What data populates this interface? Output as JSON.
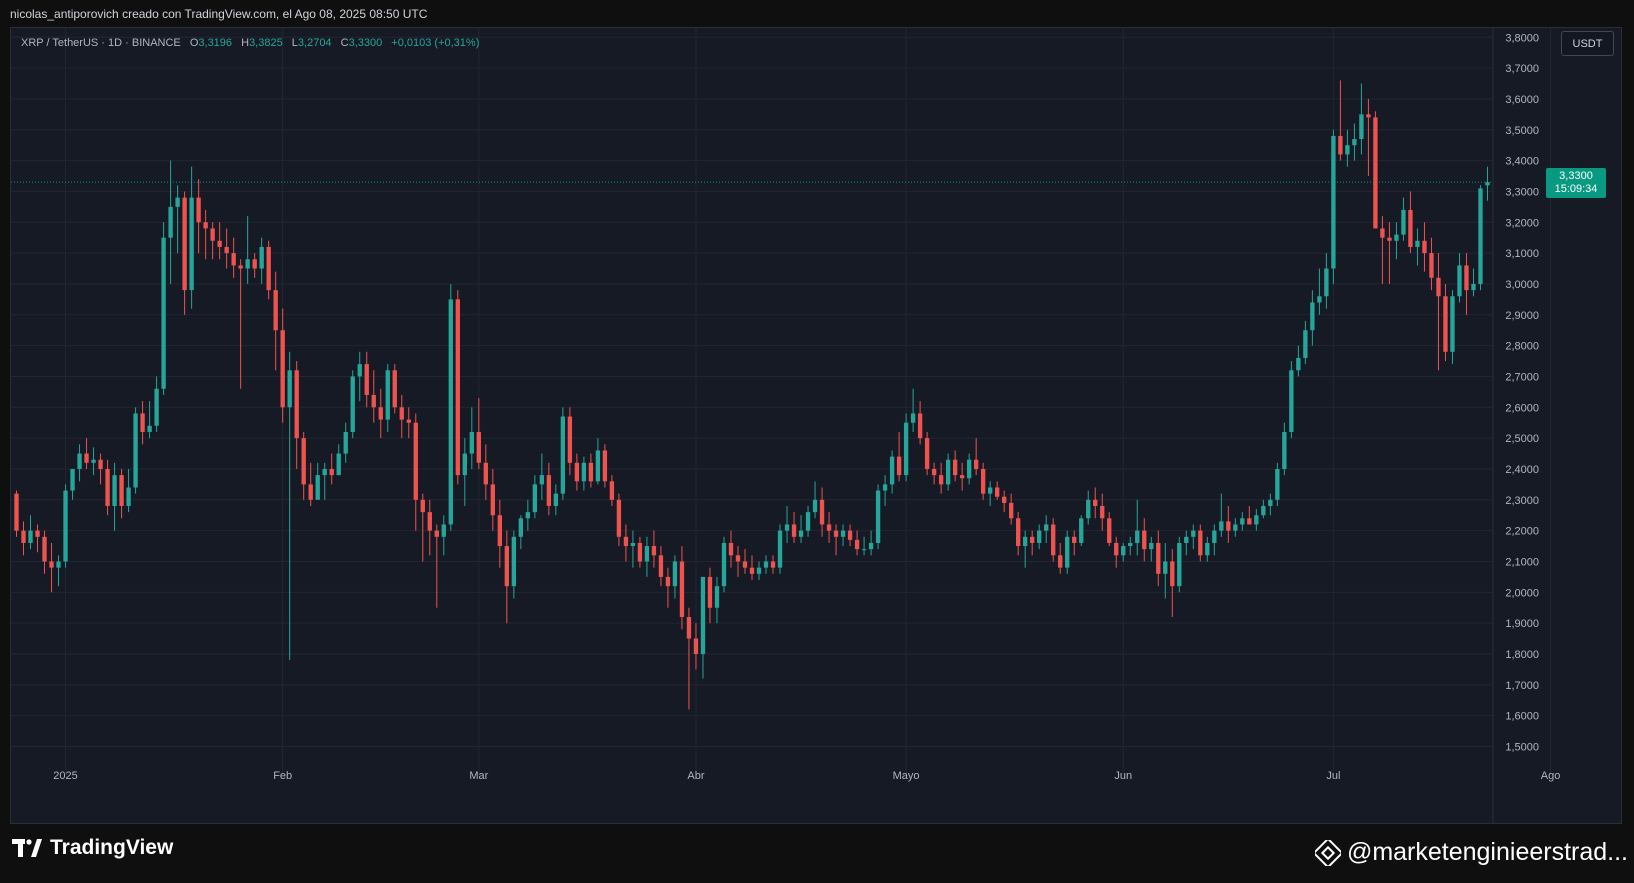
{
  "header": {
    "caption": "nicolas_antiporovich creado con TradingView.com, el Ago 08, 2025 08:50 UTC"
  },
  "legend": {
    "symbol": "XRP / TetherUS · 1D · BINANCE",
    "o_label": "O",
    "o_value": "3,3196",
    "h_label": "H",
    "h_value": "3,3825",
    "l_label": "L",
    "l_value": "3,2704",
    "c_label": "C",
    "c_value": "3,3300",
    "change": "+0,0103 (+0,31%)"
  },
  "currency_button": {
    "label": "USDT"
  },
  "price_tag": {
    "price": "3,3300",
    "countdown": "15:09:34"
  },
  "footer": {
    "brand": "TradingView",
    "watermark": "@marketenginieerstrad..."
  },
  "colors": {
    "up": "#26a69a",
    "down": "#ef5350",
    "background": "#161a25",
    "grid": "#232632",
    "axis_text": "#b2b5be",
    "last_price": "#089981"
  },
  "chart_data": {
    "type": "candlestick",
    "title": "XRP / TetherUS · 1D · BINANCE",
    "ylim": [
      1.44,
      3.83
    ],
    "y_ticks": [
      "1,5000",
      "1,6000",
      "1,7000",
      "1,8000",
      "1,9000",
      "2,0000",
      "2,1000",
      "2,2000",
      "2,3000",
      "2,4000",
      "2,5000",
      "2,6000",
      "2,7000",
      "2,8000",
      "2,9000",
      "3,0000",
      "3,1000",
      "3,2000",
      "3,3000",
      "3,4000",
      "3,5000",
      "3,6000",
      "3,7000",
      "3,8000"
    ],
    "x_ticks": [
      {
        "label": "2025",
        "index": 7
      },
      {
        "label": "Feb",
        "index": 38
      },
      {
        "label": "Mar",
        "index": 66
      },
      {
        "label": "Abr",
        "index": 97
      },
      {
        "label": "Mayo",
        "index": 127
      },
      {
        "label": "Jun",
        "index": 158
      },
      {
        "label": "Jul",
        "index": 188
      },
      {
        "label": "Ago",
        "index": 219
      }
    ],
    "last_price": 3.33,
    "ohlc": [
      [
        2.32,
        2.33,
        2.18,
        2.2
      ],
      [
        2.2,
        2.23,
        2.12,
        2.16
      ],
      [
        2.16,
        2.25,
        2.14,
        2.2
      ],
      [
        2.2,
        2.22,
        2.13,
        2.18
      ],
      [
        2.18,
        2.2,
        2.06,
        2.1
      ],
      [
        2.1,
        2.16,
        2.0,
        2.08
      ],
      [
        2.08,
        2.12,
        2.02,
        2.1
      ],
      [
        2.1,
        2.35,
        2.08,
        2.33
      ],
      [
        2.33,
        2.4,
        2.3,
        2.4
      ],
      [
        2.4,
        2.48,
        2.36,
        2.45
      ],
      [
        2.45,
        2.5,
        2.4,
        2.42
      ],
      [
        2.42,
        2.47,
        2.38,
        2.43
      ],
      [
        2.43,
        2.45,
        2.35,
        2.4
      ],
      [
        2.4,
        2.43,
        2.25,
        2.28
      ],
      [
        2.28,
        2.42,
        2.2,
        2.38
      ],
      [
        2.38,
        2.4,
        2.24,
        2.28
      ],
      [
        2.28,
        2.4,
        2.26,
        2.34
      ],
      [
        2.34,
        2.6,
        2.32,
        2.58
      ],
      [
        2.58,
        2.62,
        2.48,
        2.52
      ],
      [
        2.52,
        2.62,
        2.5,
        2.54
      ],
      [
        2.54,
        2.7,
        2.52,
        2.66
      ],
      [
        2.66,
        3.2,
        2.64,
        3.15
      ],
      [
        3.15,
        3.4,
        3.0,
        3.25
      ],
      [
        3.25,
        3.32,
        3.1,
        3.28
      ],
      [
        3.28,
        3.3,
        2.9,
        2.98
      ],
      [
        2.98,
        3.38,
        2.92,
        3.28
      ],
      [
        3.28,
        3.34,
        3.1,
        3.2
      ],
      [
        3.2,
        3.24,
        3.08,
        3.18
      ],
      [
        3.18,
        3.2,
        3.08,
        3.14
      ],
      [
        3.14,
        3.2,
        3.08,
        3.12
      ],
      [
        3.12,
        3.18,
        3.05,
        3.1
      ],
      [
        3.1,
        3.15,
        3.02,
        3.06
      ],
      [
        3.06,
        3.08,
        2.66,
        3.05
      ],
      [
        3.05,
        3.22,
        3.0,
        3.08
      ],
      [
        3.08,
        3.1,
        3.02,
        3.05
      ],
      [
        3.05,
        3.15,
        3.0,
        3.12
      ],
      [
        3.12,
        3.14,
        2.95,
        2.98
      ],
      [
        2.98,
        3.04,
        2.72,
        2.85
      ],
      [
        2.85,
        2.92,
        2.55,
        2.6
      ],
      [
        2.6,
        2.78,
        1.78,
        2.72
      ],
      [
        2.72,
        2.75,
        2.4,
        2.5
      ],
      [
        2.5,
        2.52,
        2.3,
        2.35
      ],
      [
        2.35,
        2.42,
        2.28,
        2.3
      ],
      [
        2.3,
        2.42,
        2.3,
        2.38
      ],
      [
        2.38,
        2.42,
        2.3,
        2.4
      ],
      [
        2.4,
        2.45,
        2.35,
        2.38
      ],
      [
        2.38,
        2.48,
        2.38,
        2.45
      ],
      [
        2.45,
        2.55,
        2.42,
        2.52
      ],
      [
        2.52,
        2.72,
        2.5,
        2.7
      ],
      [
        2.7,
        2.78,
        2.62,
        2.74
      ],
      [
        2.74,
        2.78,
        2.6,
        2.64
      ],
      [
        2.64,
        2.72,
        2.55,
        2.6
      ],
      [
        2.6,
        2.66,
        2.5,
        2.56
      ],
      [
        2.56,
        2.74,
        2.52,
        2.72
      ],
      [
        2.72,
        2.74,
        2.58,
        2.6
      ],
      [
        2.6,
        2.64,
        2.5,
        2.56
      ],
      [
        2.56,
        2.6,
        2.5,
        2.55
      ],
      [
        2.55,
        2.58,
        2.2,
        2.3
      ],
      [
        2.3,
        2.32,
        2.1,
        2.26
      ],
      [
        2.26,
        2.3,
        2.12,
        2.2
      ],
      [
        2.2,
        2.22,
        1.95,
        2.18
      ],
      [
        2.18,
        2.25,
        2.12,
        2.22
      ],
      [
        2.22,
        3.0,
        2.2,
        2.95
      ],
      [
        2.95,
        2.98,
        2.35,
        2.38
      ],
      [
        2.38,
        2.5,
        2.28,
        2.45
      ],
      [
        2.45,
        2.6,
        2.4,
        2.52
      ],
      [
        2.52,
        2.63,
        2.4,
        2.42
      ],
      [
        2.42,
        2.48,
        2.3,
        2.35
      ],
      [
        2.35,
        2.4,
        2.2,
        2.25
      ],
      [
        2.25,
        2.3,
        2.08,
        2.15
      ],
      [
        2.15,
        2.2,
        1.9,
        2.02
      ],
      [
        2.02,
        2.2,
        1.98,
        2.18
      ],
      [
        2.18,
        2.25,
        2.14,
        2.24
      ],
      [
        2.24,
        2.3,
        2.2,
        2.26
      ],
      [
        2.26,
        2.38,
        2.24,
        2.35
      ],
      [
        2.35,
        2.45,
        2.3,
        2.38
      ],
      [
        2.38,
        2.42,
        2.25,
        2.28
      ],
      [
        2.28,
        2.35,
        2.25,
        2.32
      ],
      [
        2.32,
        2.6,
        2.3,
        2.57
      ],
      [
        2.57,
        2.6,
        2.38,
        2.42
      ],
      [
        2.42,
        2.45,
        2.33,
        2.36
      ],
      [
        2.36,
        2.44,
        2.33,
        2.42
      ],
      [
        2.42,
        2.45,
        2.34,
        2.36
      ],
      [
        2.36,
        2.5,
        2.35,
        2.46
      ],
      [
        2.46,
        2.48,
        2.34,
        2.36
      ],
      [
        2.36,
        2.38,
        2.28,
        2.3
      ],
      [
        2.3,
        2.32,
        2.15,
        2.18
      ],
      [
        2.18,
        2.22,
        2.1,
        2.15
      ],
      [
        2.15,
        2.2,
        2.08,
        2.16
      ],
      [
        2.16,
        2.18,
        2.08,
        2.1
      ],
      [
        2.1,
        2.18,
        2.05,
        2.15
      ],
      [
        2.15,
        2.2,
        2.08,
        2.12
      ],
      [
        2.12,
        2.15,
        2.02,
        2.05
      ],
      [
        2.05,
        2.08,
        1.95,
        2.02
      ],
      [
        2.02,
        2.12,
        1.98,
        2.1
      ],
      [
        2.1,
        2.15,
        1.88,
        1.92
      ],
      [
        1.92,
        1.95,
        1.62,
        1.85
      ],
      [
        1.85,
        1.9,
        1.75,
        1.8
      ],
      [
        1.8,
        2.05,
        1.72,
        2.05
      ],
      [
        2.05,
        2.08,
        1.9,
        1.95
      ],
      [
        1.95,
        2.05,
        1.9,
        2.02
      ],
      [
        2.02,
        2.18,
        2.0,
        2.16
      ],
      [
        2.16,
        2.2,
        2.08,
        2.12
      ],
      [
        2.12,
        2.15,
        2.05,
        2.1
      ],
      [
        2.1,
        2.14,
        2.06,
        2.08
      ],
      [
        2.08,
        2.12,
        2.04,
        2.06
      ],
      [
        2.06,
        2.1,
        2.04,
        2.08
      ],
      [
        2.08,
        2.12,
        2.06,
        2.1
      ],
      [
        2.1,
        2.12,
        2.06,
        2.08
      ],
      [
        2.08,
        2.22,
        2.06,
        2.2
      ],
      [
        2.2,
        2.28,
        2.16,
        2.22
      ],
      [
        2.22,
        2.26,
        2.16,
        2.18
      ],
      [
        2.18,
        2.25,
        2.16,
        2.2
      ],
      [
        2.2,
        2.28,
        2.18,
        2.26
      ],
      [
        2.26,
        2.36,
        2.24,
        2.3
      ],
      [
        2.3,
        2.34,
        2.18,
        2.22
      ],
      [
        2.22,
        2.26,
        2.16,
        2.2
      ],
      [
        2.2,
        2.22,
        2.12,
        2.18
      ],
      [
        2.18,
        2.22,
        2.15,
        2.2
      ],
      [
        2.2,
        2.22,
        2.15,
        2.17
      ],
      [
        2.17,
        2.2,
        2.12,
        2.14
      ],
      [
        2.14,
        2.18,
        2.12,
        2.14
      ],
      [
        2.14,
        2.2,
        2.12,
        2.16
      ],
      [
        2.16,
        2.35,
        2.14,
        2.33
      ],
      [
        2.33,
        2.38,
        2.28,
        2.35
      ],
      [
        2.35,
        2.46,
        2.32,
        2.44
      ],
      [
        2.44,
        2.52,
        2.36,
        2.38
      ],
      [
        2.38,
        2.58,
        2.36,
        2.55
      ],
      [
        2.55,
        2.66,
        2.52,
        2.58
      ],
      [
        2.58,
        2.62,
        2.48,
        2.5
      ],
      [
        2.5,
        2.52,
        2.38,
        2.4
      ],
      [
        2.4,
        2.42,
        2.35,
        2.38
      ],
      [
        2.38,
        2.42,
        2.32,
        2.35
      ],
      [
        2.35,
        2.45,
        2.33,
        2.43
      ],
      [
        2.43,
        2.46,
        2.36,
        2.38
      ],
      [
        2.38,
        2.42,
        2.33,
        2.37
      ],
      [
        2.37,
        2.45,
        2.35,
        2.43
      ],
      [
        2.43,
        2.5,
        2.38,
        2.4
      ],
      [
        2.4,
        2.42,
        2.3,
        2.32
      ],
      [
        2.32,
        2.36,
        2.28,
        2.34
      ],
      [
        2.34,
        2.36,
        2.3,
        2.31
      ],
      [
        2.31,
        2.33,
        2.26,
        2.29
      ],
      [
        2.29,
        2.32,
        2.22,
        2.24
      ],
      [
        2.24,
        2.26,
        2.12,
        2.15
      ],
      [
        2.15,
        2.2,
        2.08,
        2.18
      ],
      [
        2.18,
        2.2,
        2.12,
        2.16
      ],
      [
        2.16,
        2.22,
        2.14,
        2.2
      ],
      [
        2.2,
        2.25,
        2.16,
        2.22
      ],
      [
        2.22,
        2.24,
        2.1,
        2.12
      ],
      [
        2.12,
        2.16,
        2.06,
        2.08
      ],
      [
        2.08,
        2.2,
        2.06,
        2.18
      ],
      [
        2.18,
        2.2,
        2.12,
        2.16
      ],
      [
        2.16,
        2.25,
        2.15,
        2.24
      ],
      [
        2.24,
        2.33,
        2.22,
        2.3
      ],
      [
        2.3,
        2.34,
        2.24,
        2.28
      ],
      [
        2.28,
        2.32,
        2.2,
        2.24
      ],
      [
        2.24,
        2.26,
        2.15,
        2.16
      ],
      [
        2.16,
        2.18,
        2.08,
        2.12
      ],
      [
        2.12,
        2.16,
        2.1,
        2.15
      ],
      [
        2.15,
        2.18,
        2.12,
        2.16
      ],
      [
        2.16,
        2.3,
        2.12,
        2.2
      ],
      [
        2.2,
        2.24,
        2.1,
        2.14
      ],
      [
        2.14,
        2.18,
        2.1,
        2.16
      ],
      [
        2.16,
        2.2,
        2.02,
        2.06
      ],
      [
        2.06,
        2.16,
        1.98,
        2.1
      ],
      [
        2.1,
        2.14,
        1.92,
        2.02
      ],
      [
        2.02,
        2.18,
        2.0,
        2.16
      ],
      [
        2.16,
        2.2,
        2.12,
        2.18
      ],
      [
        2.18,
        2.22,
        2.14,
        2.2
      ],
      [
        2.2,
        2.22,
        2.1,
        2.12
      ],
      [
        2.12,
        2.18,
        2.1,
        2.16
      ],
      [
        2.16,
        2.22,
        2.12,
        2.2
      ],
      [
        2.2,
        2.32,
        2.18,
        2.23
      ],
      [
        2.23,
        2.28,
        2.16,
        2.2
      ],
      [
        2.2,
        2.24,
        2.18,
        2.22
      ],
      [
        2.22,
        2.26,
        2.2,
        2.24
      ],
      [
        2.24,
        2.28,
        2.22,
        2.22
      ],
      [
        2.22,
        2.27,
        2.2,
        2.25
      ],
      [
        2.25,
        2.3,
        2.24,
        2.28
      ],
      [
        2.28,
        2.32,
        2.25,
        2.3
      ],
      [
        2.3,
        2.42,
        2.28,
        2.4
      ],
      [
        2.4,
        2.55,
        2.38,
        2.52
      ],
      [
        2.52,
        2.75,
        2.5,
        2.72
      ],
      [
        2.72,
        2.8,
        2.7,
        2.76
      ],
      [
        2.76,
        2.88,
        2.74,
        2.85
      ],
      [
        2.85,
        2.98,
        2.8,
        2.94
      ],
      [
        2.94,
        3.05,
        2.9,
        2.96
      ],
      [
        2.96,
        3.1,
        2.92,
        3.05
      ],
      [
        3.05,
        3.5,
        3.0,
        3.48
      ],
      [
        3.48,
        3.66,
        3.4,
        3.42
      ],
      [
        3.42,
        3.5,
        3.38,
        3.45
      ],
      [
        3.45,
        3.52,
        3.4,
        3.47
      ],
      [
        3.47,
        3.65,
        3.42,
        3.55
      ],
      [
        3.55,
        3.6,
        3.35,
        3.54
      ],
      [
        3.54,
        3.56,
        3.2,
        3.18
      ],
      [
        3.18,
        3.22,
        3.0,
        3.15
      ],
      [
        3.15,
        3.2,
        3.0,
        3.14
      ],
      [
        3.14,
        3.2,
        3.08,
        3.16
      ],
      [
        3.16,
        3.28,
        3.14,
        3.24
      ],
      [
        3.24,
        3.3,
        3.1,
        3.12
      ],
      [
        3.12,
        3.18,
        3.06,
        3.14
      ],
      [
        3.14,
        3.2,
        3.04,
        3.1
      ],
      [
        3.1,
        3.15,
        2.98,
        3.02
      ],
      [
        3.02,
        3.1,
        2.72,
        2.96
      ],
      [
        2.96,
        3.0,
        2.75,
        2.78
      ],
      [
        2.78,
        2.98,
        2.74,
        2.96
      ],
      [
        2.96,
        3.1,
        2.94,
        3.06
      ],
      [
        3.06,
        3.1,
        2.9,
        2.98
      ],
      [
        2.98,
        3.05,
        2.96,
        3.0
      ],
      [
        3.0,
        3.32,
        2.98,
        3.31
      ],
      [
        3.32,
        3.38,
        3.27,
        3.33
      ]
    ]
  }
}
